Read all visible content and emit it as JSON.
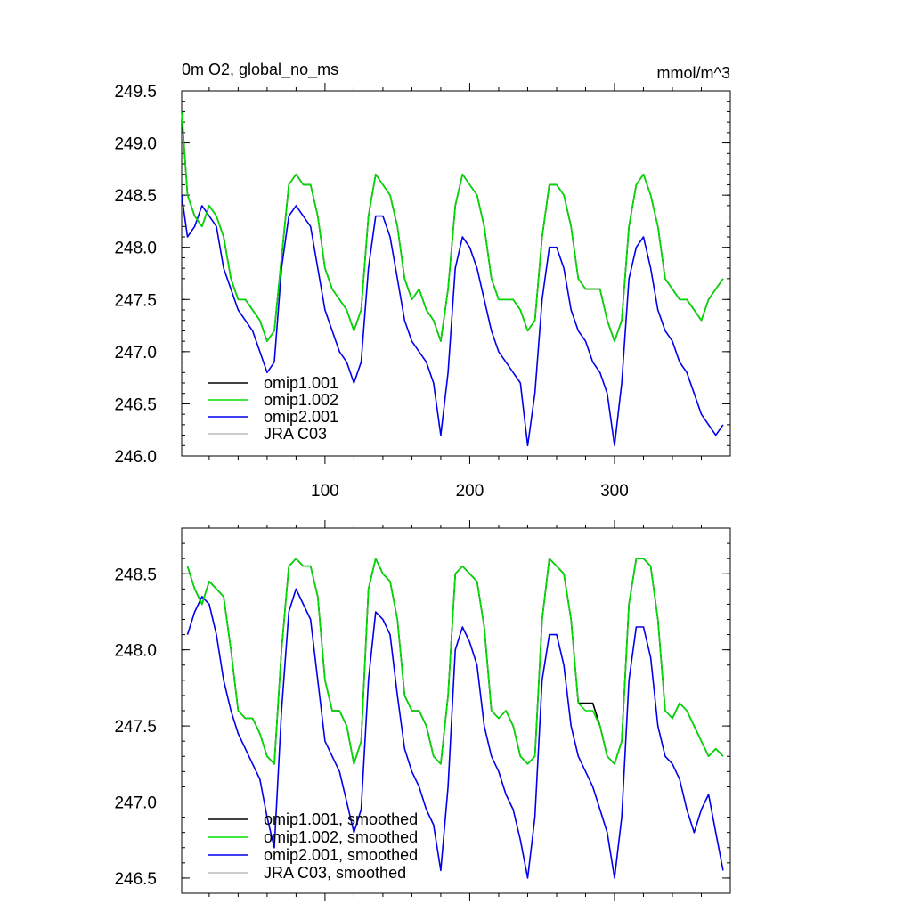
{
  "chart_data": [
    {
      "type": "line",
      "title_left": "0m O2, global_no_ms",
      "title_right": "mmol/m^3",
      "xlim": [
        1,
        380
      ],
      "ylim": [
        246.0,
        249.5
      ],
      "xticks": [
        100,
        200,
        300
      ],
      "xtick_labels": [
        "100",
        "200",
        "300"
      ],
      "yticks": [
        246.0,
        246.5,
        247.0,
        247.5,
        248.0,
        248.5,
        249.0,
        249.5
      ],
      "ytick_labels": [
        "246.0",
        "246.5",
        "247.0",
        "247.5",
        "248.0",
        "248.5",
        "249.0",
        "249.5"
      ],
      "legend_position": "bottom-left",
      "series": [
        {
          "name": "omip1.001",
          "color": "#000000"
        },
        {
          "name": "omip1.002",
          "color": "#00dd00"
        },
        {
          "name": "omip2.001",
          "color": "#0000ee"
        },
        {
          "name": "JRA C03",
          "color": "#bbbbbb"
        }
      ],
      "data": {
        "x": [
          1,
          5,
          10,
          15,
          20,
          25,
          30,
          35,
          40,
          45,
          50,
          55,
          60,
          65,
          70,
          75,
          80,
          85,
          90,
          95,
          100,
          105,
          110,
          115,
          120,
          125,
          130,
          135,
          140,
          145,
          150,
          155,
          160,
          165,
          170,
          175,
          180,
          185,
          190,
          195,
          200,
          205,
          210,
          215,
          220,
          225,
          230,
          235,
          240,
          245,
          250,
          255,
          260,
          265,
          270,
          275,
          280,
          285,
          290,
          295,
          300,
          305,
          310,
          315,
          320,
          325,
          330,
          335,
          340,
          345,
          350,
          355,
          360,
          365,
          370,
          375
        ],
        "omip1.001": [
          249.3,
          248.5,
          248.3,
          248.2,
          248.4,
          248.3,
          248.1,
          247.7,
          247.5,
          247.5,
          247.4,
          247.3,
          247.1,
          247.2,
          247.9,
          248.6,
          248.7,
          248.6,
          248.6,
          248.3,
          247.8,
          247.6,
          247.5,
          247.4,
          247.2,
          247.4,
          248.3,
          248.7,
          248.6,
          248.5,
          248.2,
          247.7,
          247.5,
          247.6,
          247.4,
          247.3,
          247.1,
          247.6,
          248.4,
          248.7,
          248.6,
          248.5,
          248.2,
          247.7,
          247.5,
          247.5,
          247.5,
          247.4,
          247.2,
          247.3,
          248.1,
          248.6,
          248.6,
          248.5,
          248.2,
          247.7,
          247.6,
          247.6,
          247.6,
          247.3,
          247.1,
          247.3,
          248.2,
          248.6,
          248.7,
          248.5,
          248.2,
          247.7,
          247.6,
          247.5,
          247.5,
          247.4,
          247.3,
          247.5,
          247.6,
          247.7
        ],
        "omip1.002": [
          249.3,
          248.5,
          248.3,
          248.2,
          248.4,
          248.3,
          248.1,
          247.7,
          247.5,
          247.5,
          247.4,
          247.3,
          247.1,
          247.2,
          247.9,
          248.6,
          248.7,
          248.6,
          248.6,
          248.3,
          247.8,
          247.6,
          247.5,
          247.4,
          247.2,
          247.4,
          248.3,
          248.7,
          248.6,
          248.5,
          248.2,
          247.7,
          247.5,
          247.6,
          247.4,
          247.3,
          247.1,
          247.6,
          248.4,
          248.7,
          248.6,
          248.5,
          248.2,
          247.7,
          247.5,
          247.5,
          247.5,
          247.4,
          247.2,
          247.3,
          248.1,
          248.6,
          248.6,
          248.5,
          248.2,
          247.7,
          247.6,
          247.6,
          247.6,
          247.3,
          247.1,
          247.3,
          248.2,
          248.6,
          248.7,
          248.5,
          248.2,
          247.7,
          247.6,
          247.5,
          247.5,
          247.4,
          247.3,
          247.5,
          247.6,
          247.7
        ],
        "omip2.001": [
          248.5,
          248.1,
          248.2,
          248.4,
          248.3,
          248.2,
          247.8,
          247.6,
          247.4,
          247.3,
          247.2,
          247.0,
          246.8,
          246.9,
          247.8,
          248.3,
          248.4,
          248.3,
          248.2,
          247.8,
          247.4,
          247.2,
          247.0,
          246.9,
          246.7,
          246.9,
          247.8,
          248.3,
          248.3,
          248.1,
          247.7,
          247.3,
          247.1,
          247.0,
          246.9,
          246.7,
          246.2,
          246.8,
          247.8,
          248.1,
          248.0,
          247.8,
          247.5,
          247.2,
          247.0,
          246.9,
          246.8,
          246.7,
          246.1,
          246.6,
          247.5,
          248.0,
          248.0,
          247.8,
          247.4,
          247.2,
          247.1,
          246.9,
          246.8,
          246.6,
          246.1,
          246.7,
          247.7,
          248.0,
          248.1,
          247.8,
          247.4,
          247.2,
          247.1,
          246.9,
          246.8,
          246.6,
          246.4,
          246.3,
          246.2,
          246.3
        ],
        "JRA C03": []
      }
    },
    {
      "type": "line",
      "xlim": [
        1,
        380
      ],
      "ylim": [
        246.4,
        248.8
      ],
      "xticks": [
        100,
        200,
        300
      ],
      "xtick_labels": [],
      "yticks": [
        246.5,
        247.0,
        247.5,
        248.0,
        248.5
      ],
      "ytick_labels": [
        "246.5",
        "247.0",
        "247.5",
        "248.0",
        "248.5"
      ],
      "legend_position": "bottom-left",
      "series": [
        {
          "name": "omip1.001, smoothed",
          "color": "#000000"
        },
        {
          "name": "omip1.002, smoothed",
          "color": "#00dd00"
        },
        {
          "name": "omip2.001, smoothed",
          "color": "#0000ee"
        },
        {
          "name": "JRA C03, smoothed",
          "color": "#bbbbbb"
        }
      ],
      "data": {
        "x": [
          5,
          10,
          15,
          20,
          25,
          30,
          35,
          40,
          45,
          50,
          55,
          60,
          65,
          70,
          75,
          80,
          85,
          90,
          95,
          100,
          105,
          110,
          115,
          120,
          125,
          130,
          135,
          140,
          145,
          150,
          155,
          160,
          165,
          170,
          175,
          180,
          185,
          190,
          195,
          200,
          205,
          210,
          215,
          220,
          225,
          230,
          235,
          240,
          245,
          250,
          255,
          260,
          265,
          270,
          275,
          280,
          285,
          290,
          295,
          300,
          305,
          310,
          315,
          320,
          325,
          330,
          335,
          340,
          345,
          350,
          355,
          360,
          365,
          370,
          375
        ],
        "omip1.001, smoothed": [
          248.55,
          248.4,
          248.3,
          248.45,
          248.4,
          248.35,
          248.0,
          247.6,
          247.55,
          247.55,
          247.45,
          247.3,
          247.25,
          248.0,
          248.55,
          248.6,
          248.55,
          248.55,
          248.35,
          247.8,
          247.6,
          247.6,
          247.5,
          247.25,
          247.4,
          248.4,
          248.6,
          248.5,
          248.45,
          248.2,
          247.7,
          247.6,
          247.6,
          247.5,
          247.3,
          247.25,
          247.7,
          248.5,
          248.55,
          248.5,
          248.45,
          248.15,
          247.6,
          247.55,
          247.6,
          247.5,
          247.3,
          247.25,
          247.3,
          248.2,
          248.6,
          248.55,
          248.5,
          248.2,
          247.65,
          247.65,
          247.65,
          247.5,
          247.3,
          247.25,
          247.4,
          248.3,
          248.6,
          248.6,
          248.55,
          248.2,
          247.6,
          247.55,
          247.65,
          247.6,
          247.5,
          247.4,
          247.3,
          247.35,
          247.3
        ],
        "omip1.002, smoothed": [
          248.55,
          248.4,
          248.3,
          248.45,
          248.4,
          248.35,
          248.0,
          247.6,
          247.55,
          247.55,
          247.45,
          247.3,
          247.25,
          248.0,
          248.55,
          248.6,
          248.55,
          248.55,
          248.35,
          247.8,
          247.6,
          247.6,
          247.5,
          247.25,
          247.4,
          248.4,
          248.6,
          248.5,
          248.45,
          248.2,
          247.7,
          247.6,
          247.6,
          247.5,
          247.3,
          247.25,
          247.7,
          248.5,
          248.55,
          248.5,
          248.45,
          248.15,
          247.6,
          247.55,
          247.6,
          247.5,
          247.3,
          247.25,
          247.3,
          248.2,
          248.6,
          248.55,
          248.5,
          248.2,
          247.65,
          247.6,
          247.6,
          247.5,
          247.3,
          247.25,
          247.4,
          248.3,
          248.6,
          248.6,
          248.55,
          248.2,
          247.6,
          247.55,
          247.65,
          247.6,
          247.5,
          247.4,
          247.3,
          247.35,
          247.3
        ],
        "omip2.001, smoothed": [
          248.1,
          248.25,
          248.35,
          248.3,
          248.1,
          247.8,
          247.6,
          247.45,
          247.35,
          247.25,
          247.15,
          246.9,
          246.7,
          247.6,
          248.25,
          248.4,
          248.3,
          248.2,
          247.8,
          247.4,
          247.3,
          247.2,
          247.0,
          246.8,
          246.95,
          247.8,
          248.25,
          248.2,
          248.1,
          247.7,
          247.35,
          247.2,
          247.1,
          246.95,
          246.85,
          246.55,
          247.1,
          248.0,
          248.15,
          248.05,
          247.9,
          247.5,
          247.3,
          247.2,
          247.05,
          246.95,
          246.75,
          246.5,
          246.9,
          247.8,
          248.1,
          248.1,
          247.9,
          247.5,
          247.3,
          247.2,
          247.1,
          246.95,
          246.8,
          246.5,
          246.9,
          247.8,
          248.15,
          248.15,
          247.95,
          247.5,
          247.3,
          247.25,
          247.15,
          246.95,
          246.8,
          246.95,
          247.05,
          246.8,
          246.55
        ],
        "JRA C03, smoothed": []
      }
    }
  ]
}
